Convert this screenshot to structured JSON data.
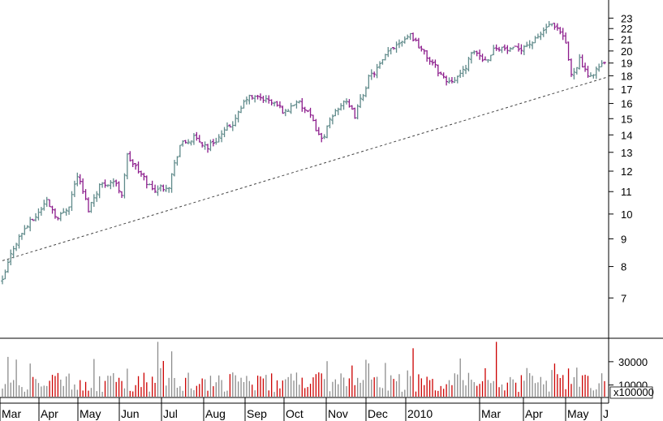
{
  "chart_data": [
    {
      "type": "ohlc",
      "title": "",
      "colors": {
        "up": "#5f8a8a",
        "down": "#8b1a8b",
        "trendline": "#444444"
      },
      "y_axis": {
        "ylim": [
          6,
          24.5
        ],
        "ticks": [
          7,
          8,
          9,
          10,
          11,
          12,
          13,
          14,
          15,
          16,
          17,
          18,
          19,
          20,
          21,
          22,
          23
        ],
        "side": "right",
        "scale": "log"
      },
      "x_axis": {
        "labels": [
          "Mar",
          "Apr",
          "May",
          "Jun",
          "Jul",
          "Aug",
          "Sep",
          "Oct",
          "Nov",
          "Dec",
          "2010",
          "Mar",
          "Apr",
          "May",
          "J"
        ]
      },
      "price_path": [
        {
          "t": 0,
          "price": 7.5
        },
        {
          "t": 4,
          "price": 8.7
        },
        {
          "t": 8,
          "price": 9.4
        },
        {
          "t": 12,
          "price": 9.9
        },
        {
          "t": 16,
          "price": 10.6
        },
        {
          "t": 20,
          "price": 9.8
        },
        {
          "t": 24,
          "price": 10.4
        },
        {
          "t": 27,
          "price": 11.8
        },
        {
          "t": 31,
          "price": 10.2
        },
        {
          "t": 35,
          "price": 11.3
        },
        {
          "t": 40,
          "price": 11.5
        },
        {
          "t": 43,
          "price": 10.9
        },
        {
          "t": 45,
          "price": 12.8
        },
        {
          "t": 49,
          "price": 12.0
        },
        {
          "t": 54,
          "price": 11.1
        },
        {
          "t": 60,
          "price": 11.3
        },
        {
          "t": 64,
          "price": 13.4
        },
        {
          "t": 69,
          "price": 13.8
        },
        {
          "t": 74,
          "price": 13.3
        },
        {
          "t": 79,
          "price": 14.0
        },
        {
          "t": 84,
          "price": 14.9
        },
        {
          "t": 88,
          "price": 16.4
        },
        {
          "t": 93,
          "price": 16.4
        },
        {
          "t": 98,
          "price": 16.0
        },
        {
          "t": 102,
          "price": 15.4
        },
        {
          "t": 106,
          "price": 16.2
        },
        {
          "t": 111,
          "price": 15.1
        },
        {
          "t": 115,
          "price": 13.7
        },
        {
          "t": 120,
          "price": 15.5
        },
        {
          "t": 123,
          "price": 16.2
        },
        {
          "t": 127,
          "price": 15.2
        },
        {
          "t": 130,
          "price": 16.7
        },
        {
          "t": 132,
          "price": 17.8
        },
        {
          "t": 136,
          "price": 18.8
        },
        {
          "t": 140,
          "price": 20.2
        },
        {
          "t": 144,
          "price": 21.0
        },
        {
          "t": 147,
          "price": 21.5
        },
        {
          "t": 152,
          "price": 19.8
        },
        {
          "t": 157,
          "price": 18.4
        },
        {
          "t": 160,
          "price": 17.6
        },
        {
          "t": 165,
          "price": 18.0
        },
        {
          "t": 170,
          "price": 20.0
        },
        {
          "t": 174,
          "price": 19.2
        },
        {
          "t": 178,
          "price": 20.4
        },
        {
          "t": 183,
          "price": 20.0
        },
        {
          "t": 187,
          "price": 20.3
        },
        {
          "t": 192,
          "price": 20.9
        },
        {
          "t": 197,
          "price": 22.4
        },
        {
          "t": 201,
          "price": 21.6
        },
        {
          "t": 203,
          "price": 20.6
        },
        {
          "t": 205,
          "price": 18.0
        },
        {
          "t": 208,
          "price": 19.3
        },
        {
          "t": 211,
          "price": 17.8
        },
        {
          "t": 214,
          "price": 18.5
        },
        {
          "t": 217,
          "price": 19.0
        }
      ],
      "trendline": [
        {
          "t": 0,
          "price": 8.2
        },
        {
          "t": 218,
          "price": 17.9
        }
      ]
    },
    {
      "type": "bar",
      "ylabel": "x100000",
      "y_axis": {
        "ylim": [
          0,
          48000
        ],
        "ticks": [
          10000,
          30000
        ],
        "side": "right"
      },
      "x_axis": {
        "labels": [
          "Mar",
          "Apr",
          "May",
          "Jun",
          "Jul",
          "Aug",
          "Sep",
          "Oct",
          "Nov",
          "Dec",
          "2010",
          "Mar",
          "Apr",
          "May",
          "J"
        ]
      },
      "colors": {
        "up": "#8c8c8c",
        "down": "#cc0000"
      },
      "volume_notes": "daily volume bars, typically 5000-25000 with spikes near 47000"
    }
  ]
}
